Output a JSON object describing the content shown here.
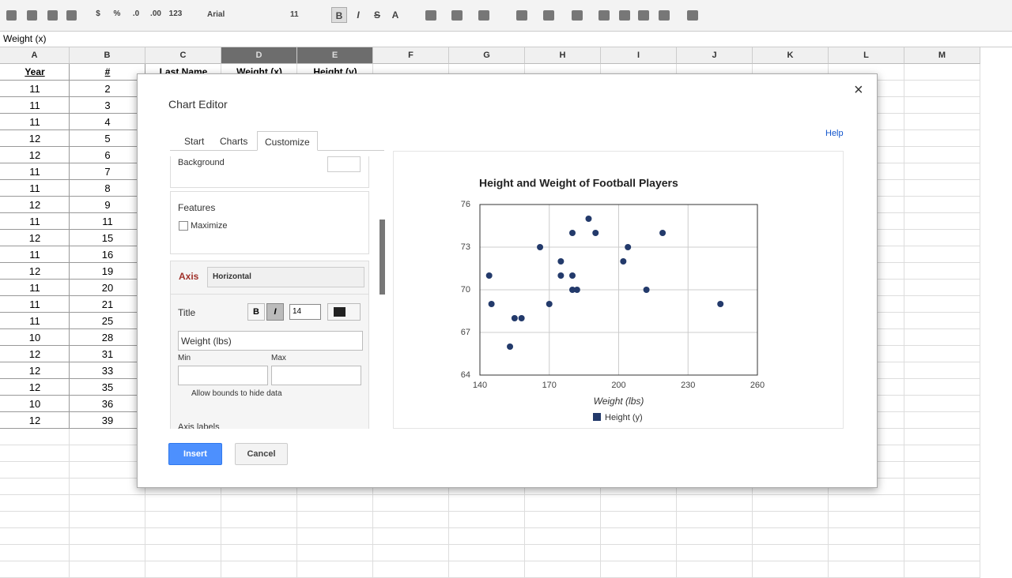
{
  "toolbar": {
    "format_buttons": [
      "$",
      "%",
      ".0",
      ".00",
      "123"
    ],
    "font": "Arial",
    "font_size": "11",
    "style_buttons": [
      "B",
      "I",
      "S",
      "A"
    ]
  },
  "formula_bar": "Weight (x)",
  "sheet": {
    "columns": [
      "A",
      "B",
      "C",
      "D",
      "E",
      "F",
      "G",
      "H",
      "I",
      "J",
      "K",
      "L",
      "M"
    ],
    "header": [
      "Year",
      "#",
      "Last Name",
      "Weight (x)",
      "Height (y)"
    ],
    "rows": [
      [
        "11",
        "2"
      ],
      [
        "11",
        "3"
      ],
      [
        "11",
        "4"
      ],
      [
        "12",
        "5"
      ],
      [
        "12",
        "6"
      ],
      [
        "11",
        "7"
      ],
      [
        "11",
        "8"
      ],
      [
        "12",
        "9"
      ],
      [
        "11",
        "11"
      ],
      [
        "12",
        "15"
      ],
      [
        "11",
        "16"
      ],
      [
        "12",
        "19"
      ],
      [
        "11",
        "20"
      ],
      [
        "11",
        "21"
      ],
      [
        "11",
        "25"
      ],
      [
        "10",
        "28"
      ],
      [
        "12",
        "31"
      ],
      [
        "12",
        "33"
      ],
      [
        "12",
        "35"
      ],
      [
        "10",
        "36"
      ],
      [
        "12",
        "39"
      ]
    ]
  },
  "dialog": {
    "title": "Chart Editor",
    "tabs": [
      "Start",
      "Charts",
      "Customize"
    ],
    "help": "Help",
    "panel": {
      "background": "Background",
      "features": "Features",
      "maximize": "Maximize",
      "axis": "Axis",
      "axis_select": "Horizontal",
      "title_label": "Title",
      "bold": "B",
      "italic": "I",
      "title_size": "14",
      "title_value": "Weight (lbs)",
      "min": "Min",
      "max": "Max",
      "allow_bounds": "Allow bounds to hide data",
      "axis_labels": "Axis labels"
    },
    "buttons": [
      "Insert",
      "Cancel"
    ],
    "close": "×"
  },
  "chart_data": {
    "type": "scatter",
    "title": "Height and Weight of Football Players",
    "x_label": "Weight (lbs)",
    "x": [
      144,
      145,
      155,
      158,
      153,
      166,
      170,
      175,
      175,
      180,
      180,
      180,
      182,
      187,
      190,
      202,
      204,
      212,
      219,
      244
    ],
    "series": [
      {
        "name": "Height (y)",
        "color": "#233a6b",
        "values": [
          71,
          69,
          68,
          68,
          66,
          73,
          69,
          72,
          71,
          74,
          71,
          70,
          70,
          75,
          74,
          72,
          73,
          70,
          74,
          69
        ]
      }
    ],
    "xlim": [
      140,
      260
    ],
    "xticks": [
      140,
      170,
      200,
      230,
      260
    ],
    "ylim": [
      64,
      76
    ],
    "yticks": [
      64,
      67,
      70,
      73,
      76
    ],
    "grid": true,
    "legend": "bottom"
  }
}
